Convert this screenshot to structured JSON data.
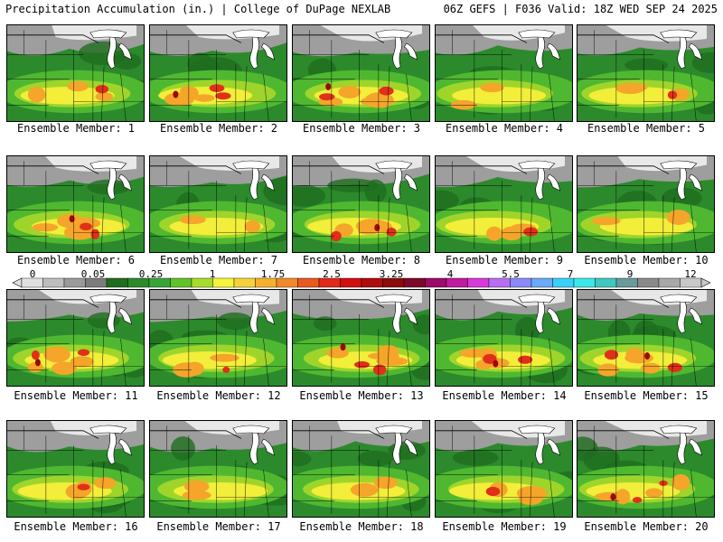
{
  "header": {
    "left": "Precipitation Accumulation (in.) | College of DuPage NEXLAB",
    "right": "06Z GEFS | F036 Valid: 18Z WED SEP 24 2025"
  },
  "panel_label_prefix": "Ensemble Member:",
  "members": [
    {
      "number": "1",
      "peak": "high"
    },
    {
      "number": "2",
      "peak": "very-high"
    },
    {
      "number": "3",
      "peak": "very-high"
    },
    {
      "number": "4",
      "peak": "moderate"
    },
    {
      "number": "5",
      "peak": "high"
    },
    {
      "number": "6",
      "peak": "very-high"
    },
    {
      "number": "7",
      "peak": "moderate"
    },
    {
      "number": "8",
      "peak": "very-high"
    },
    {
      "number": "9",
      "peak": "high"
    },
    {
      "number": "10",
      "peak": "moderate"
    },
    {
      "number": "11",
      "peak": "very-high"
    },
    {
      "number": "12",
      "peak": "high"
    },
    {
      "number": "13",
      "peak": "very-high"
    },
    {
      "number": "14",
      "peak": "very-high"
    },
    {
      "number": "15",
      "peak": "very-high"
    },
    {
      "number": "16",
      "peak": "high"
    },
    {
      "number": "17",
      "peak": "moderate"
    },
    {
      "number": "18",
      "peak": "moderate"
    },
    {
      "number": "19",
      "peak": "high"
    },
    {
      "number": "20",
      "peak": "very-high"
    }
  ],
  "colorbar": {
    "labels": [
      "0",
      "0.05",
      "0.25",
      "1",
      "1.75",
      "2.5",
      "3.25",
      "4",
      "5.5",
      "7",
      "9",
      "12"
    ],
    "colors": [
      "#e0e0e0",
      "#bdbdbd",
      "#9a9a9a",
      "#7c7c7c",
      "#1f6d1f",
      "#2b8a2b",
      "#38a538",
      "#61c22b",
      "#a8db2a",
      "#f4f43c",
      "#f5d23a",
      "#f5b02e",
      "#f08a28",
      "#e85a20",
      "#e02a1a",
      "#d01010",
      "#b00c0c",
      "#8c0a0a",
      "#7a0a2a",
      "#9c0a6a",
      "#c01aa0",
      "#d83ad8",
      "#b86ef0",
      "#8a8af8",
      "#6aaaf8",
      "#3ad0f8",
      "#3ae8e8",
      "#40c8c0",
      "#6a9a9a",
      "#8a8a8a",
      "#a8a8a8",
      "#c8c8c8"
    ]
  }
}
